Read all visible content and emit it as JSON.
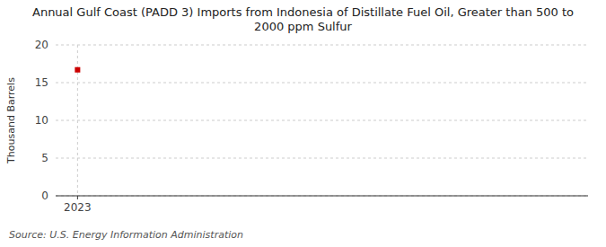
{
  "chart_data": {
    "type": "scatter",
    "title": "Annual Gulf Coast (PADD 3) Imports from Indonesia of Distillate Fuel Oil, Greater than 500 to\n2000 ppm Sulfur",
    "y_label": "Thousand Barrels",
    "source": "Source: U.S. Energy Information Administration",
    "x": [
      2023
    ],
    "values": [
      16.7
    ],
    "color": "#cc0000",
    "marker": "square",
    "xlim": [
      2022.7,
      2030
    ],
    "xticks": [
      2023
    ],
    "ylim": [
      0,
      20
    ],
    "yticks": [
      0,
      5,
      10,
      15,
      20
    ],
    "grid": true
  }
}
